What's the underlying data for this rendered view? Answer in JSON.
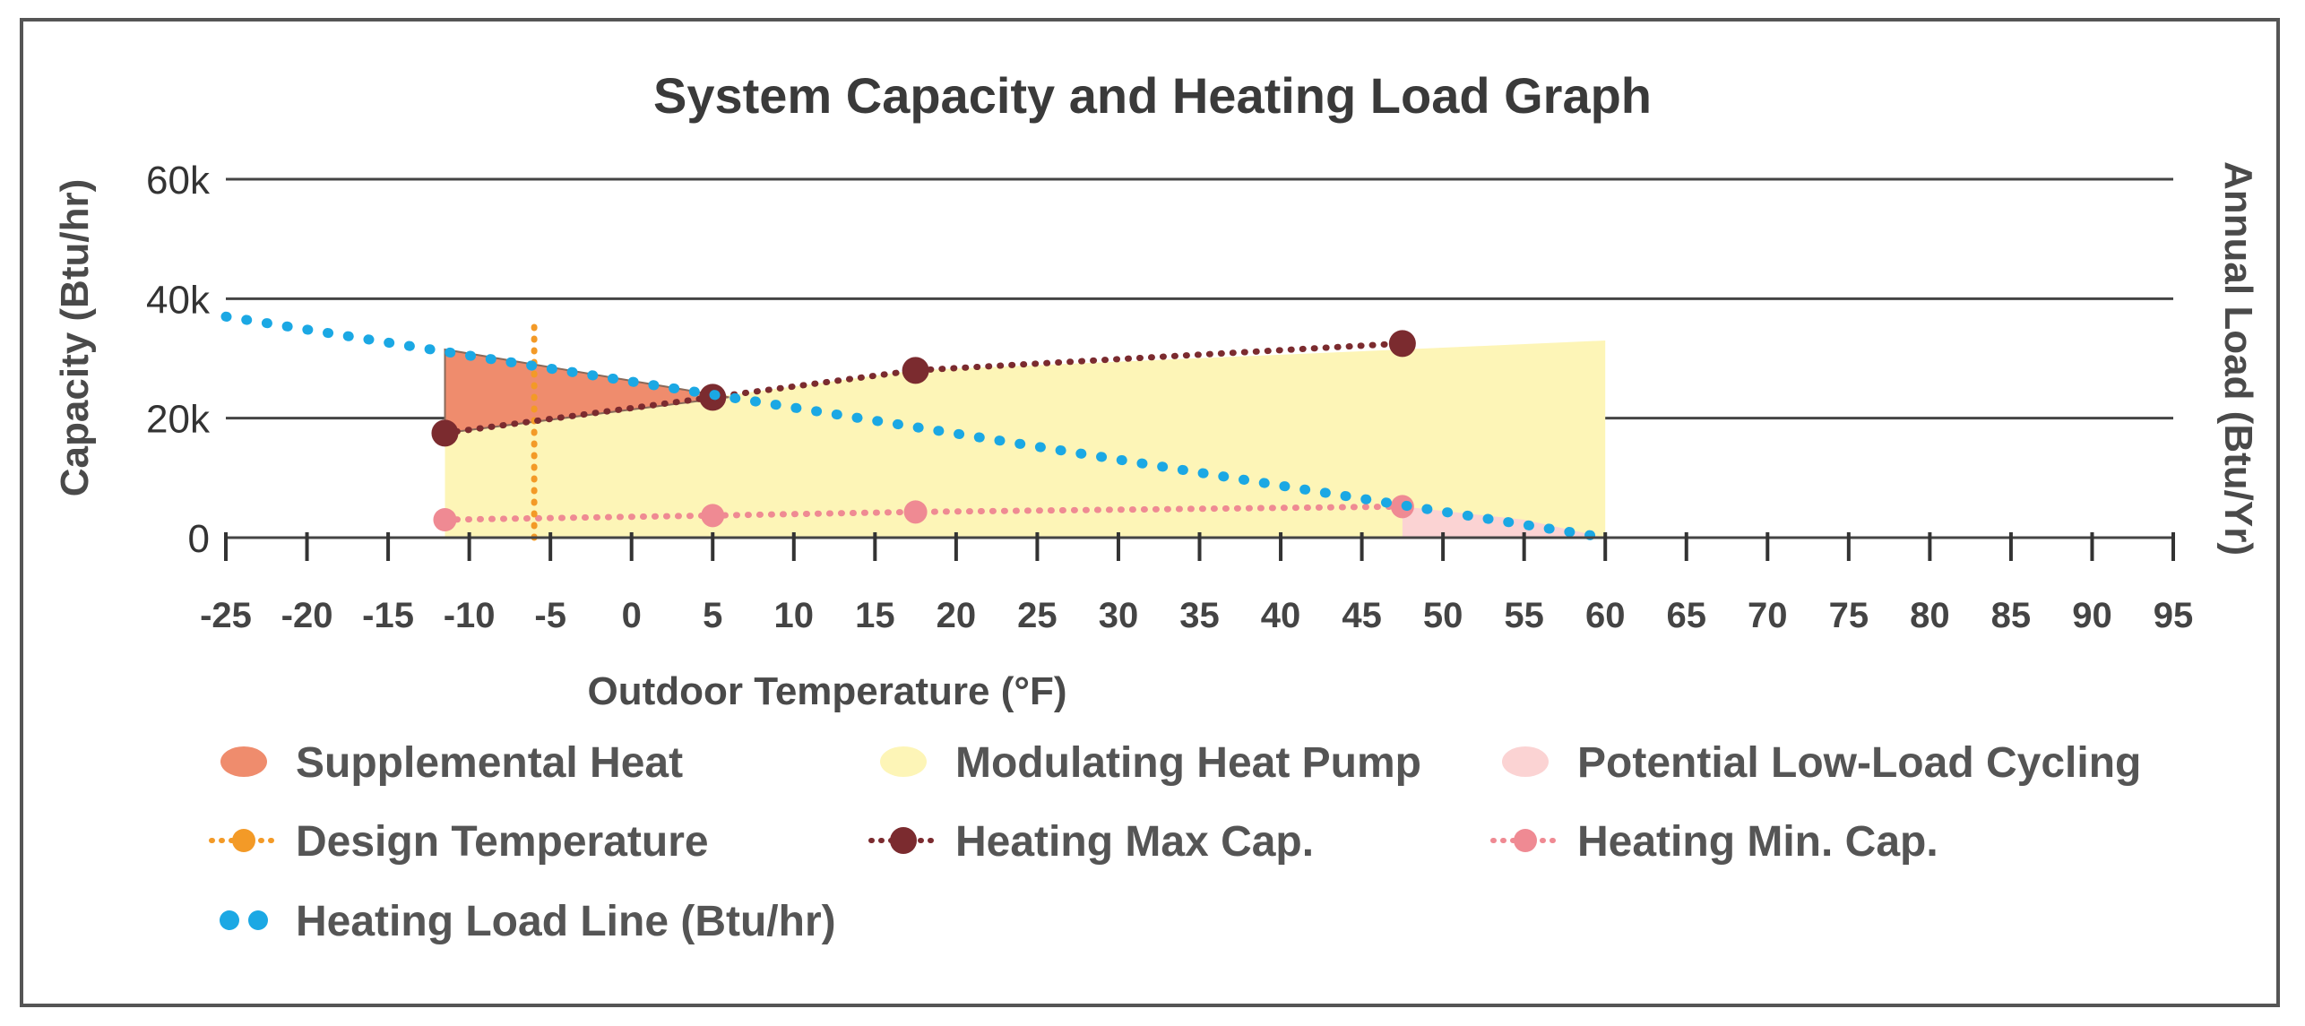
{
  "chart_data": {
    "type": "line",
    "title": "System Capacity and Heating Load Graph",
    "xlabel": "Outdoor Temperature (°F)",
    "ylabel": "Capacity (Btu/hr)",
    "ylabel_right": "Annual Load (Btu/Yr)",
    "xlim": [
      -25,
      95
    ],
    "ylim": [
      0,
      60000
    ],
    "x_ticks": [
      -25,
      -20,
      -15,
      -10,
      -5,
      0,
      5,
      10,
      15,
      20,
      25,
      30,
      35,
      40,
      45,
      50,
      55,
      60,
      65,
      70,
      75,
      80,
      85,
      90,
      95
    ],
    "y_ticks": [
      0,
      20000,
      40000,
      60000
    ],
    "y_tick_labels": [
      "0",
      "20k",
      "40k",
      "60k"
    ],
    "grid": "horizontal",
    "colors": {
      "supplemental": "#ef8c6d",
      "modulating": "#fdf5b7",
      "cycling": "#fbd3d3",
      "design": "#f39a27",
      "max_cap": "#7b2b2f",
      "min_cap": "#ef8a93",
      "load_line": "#1ba8e4"
    },
    "series": [
      {
        "name": "Heating Max Cap.",
        "x": [
          -11.5,
          5,
          17.5,
          47.5
        ],
        "y": [
          17500,
          23500,
          28000,
          32500
        ]
      },
      {
        "name": "Heating Min. Cap.",
        "x": [
          -11.5,
          5,
          17.5,
          47.5
        ],
        "y": [
          3000,
          3700,
          4300,
          5200
        ]
      },
      {
        "name": "Heating Load Line (Btu/hr)",
        "x": [
          -25,
          60
        ],
        "y": [
          37000,
          0
        ]
      },
      {
        "name": "Design Temperature",
        "x": [
          -6,
          -6
        ],
        "y": [
          0,
          37000
        ]
      }
    ],
    "areas": [
      {
        "name": "Supplemental Heat",
        "x": [
          -11.5,
          -11.5,
          6
        ],
        "y": [
          17500,
          31500,
          23500
        ]
      },
      {
        "name": "Modulating Heat Pump",
        "x": [
          -11.5,
          -11.5,
          5,
          17.5,
          47.5,
          60,
          60,
          47.5,
          -11.5
        ],
        "y": [
          3000,
          17500,
          23500,
          28000,
          31500,
          33000,
          0,
          0,
          0
        ]
      },
      {
        "name": "Potential Low-Load Cycling",
        "x": [
          47.5,
          47.5,
          55,
          60
        ],
        "y": [
          0,
          5200,
          3000,
          0
        ]
      }
    ],
    "legend": {
      "placement": "bottom",
      "items": [
        {
          "label": "Supplemental Heat",
          "marker": "fill-supplemental"
        },
        {
          "label": "Modulating Heat Pump",
          "marker": "fill-modulating"
        },
        {
          "label": "Potential Low-Load Cycling",
          "marker": "fill-cycling"
        },
        {
          "label": "Design Temperature",
          "marker": "line-design"
        },
        {
          "label": "Heating Max Cap.",
          "marker": "line-max"
        },
        {
          "label": "Heating Min. Cap.",
          "marker": "line-min"
        },
        {
          "label": "Heating Load Line (Btu/hr)",
          "marker": "dots-load"
        }
      ]
    }
  }
}
